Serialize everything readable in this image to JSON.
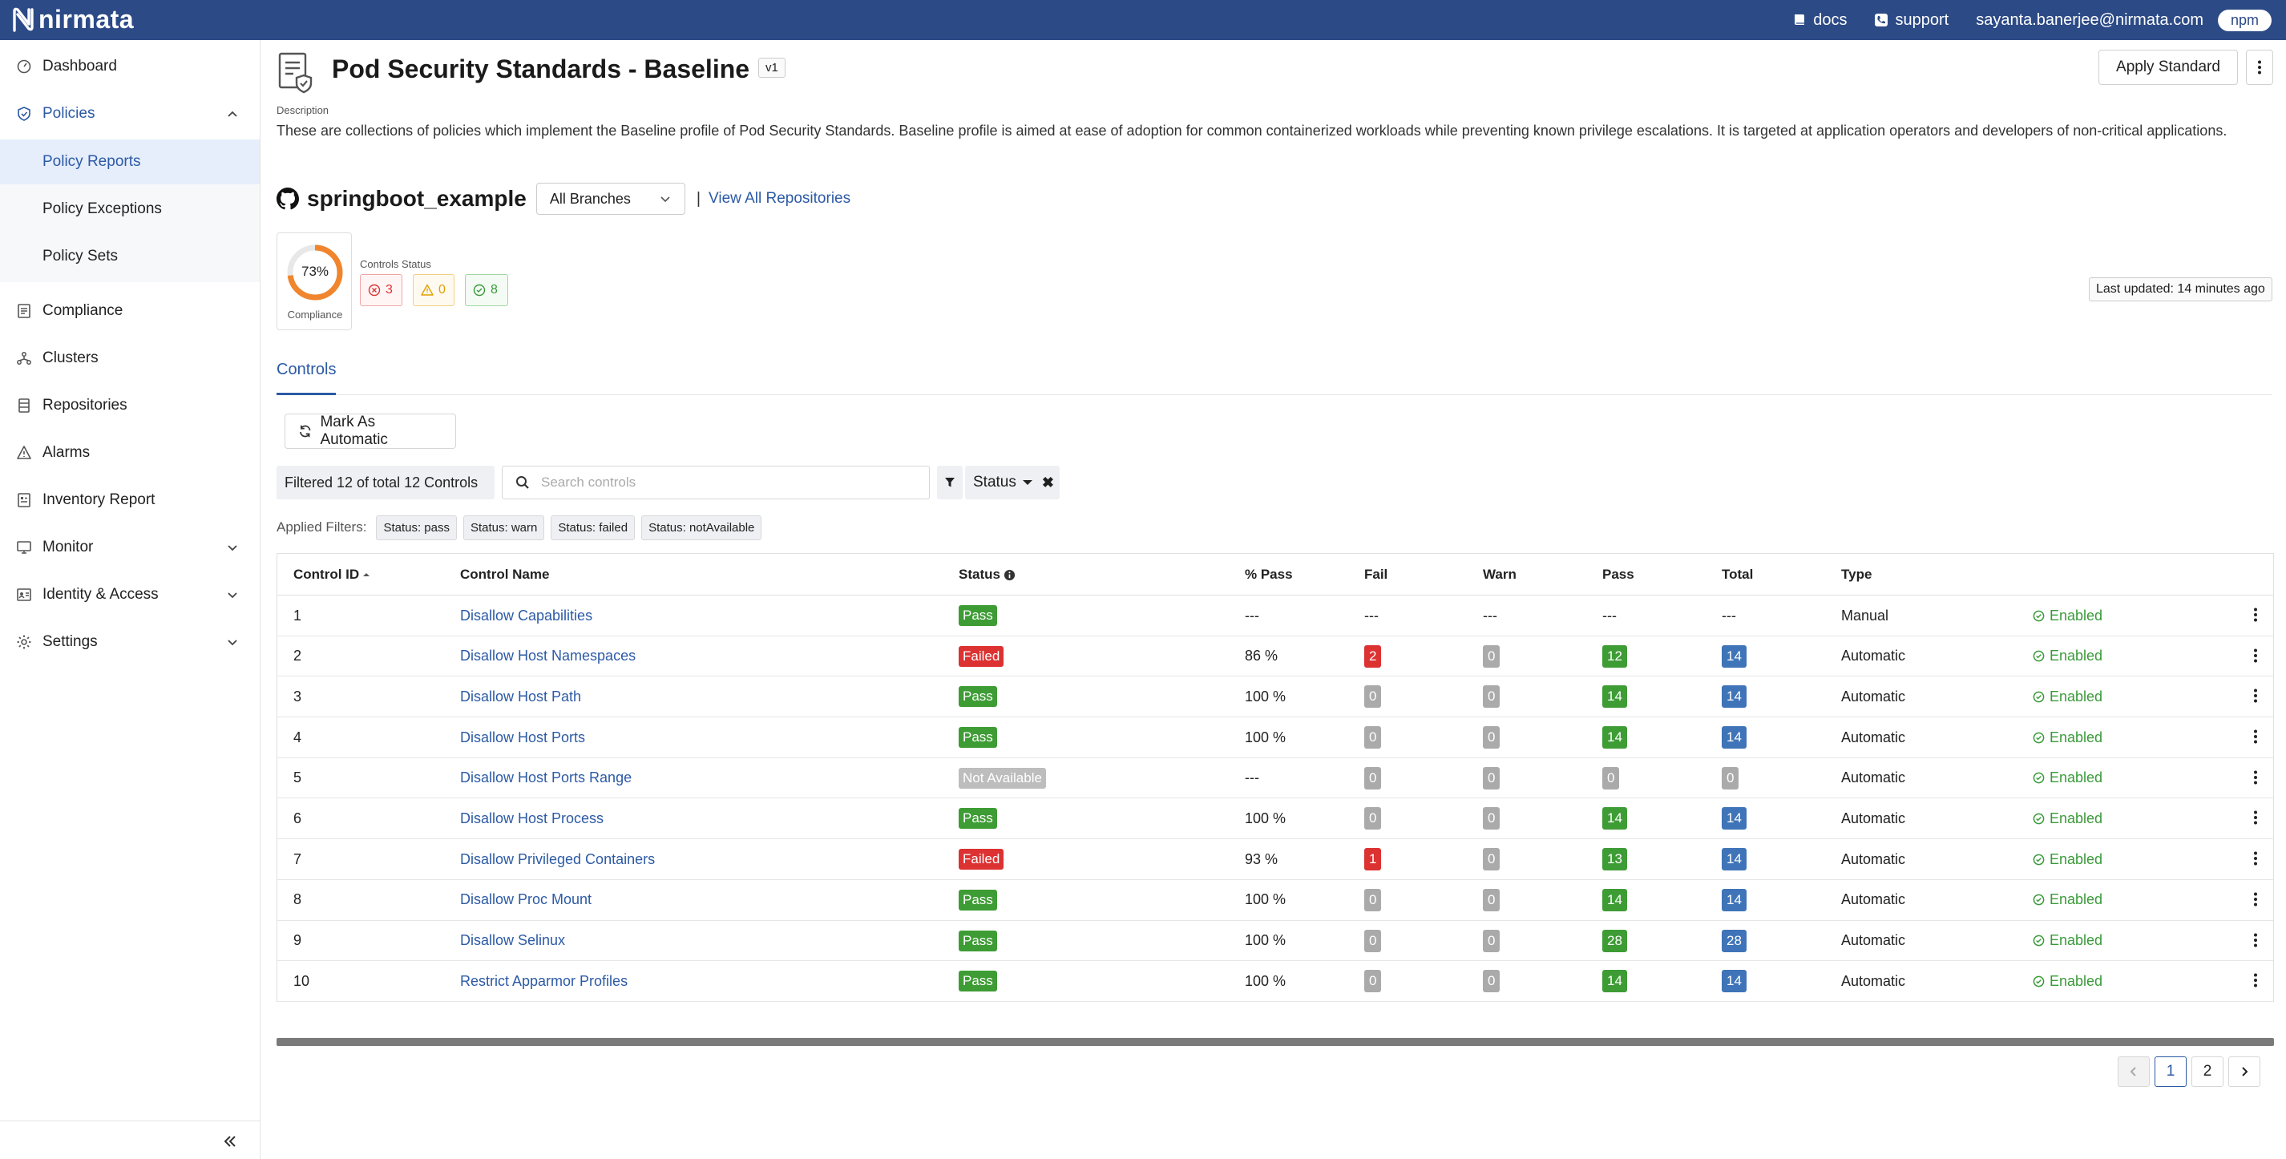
{
  "topbar": {
    "brand": "nirmata",
    "docs_label": "docs",
    "support_label": "support",
    "user_email": "sayanta.banerjee@nirmata.com",
    "tenant_pill": "npm"
  },
  "sidebar": {
    "items": [
      {
        "label": "Dashboard",
        "icon": "dashboard-icon"
      },
      {
        "label": "Policies",
        "icon": "shield-icon"
      },
      {
        "label": "Compliance",
        "icon": "compliance-icon"
      },
      {
        "label": "Clusters",
        "icon": "clusters-icon"
      },
      {
        "label": "Repositories",
        "icon": "repositories-icon"
      },
      {
        "label": "Alarms",
        "icon": "alarm-icon"
      },
      {
        "label": "Inventory Report",
        "icon": "inventory-icon"
      },
      {
        "label": "Monitor",
        "icon": "monitor-icon"
      },
      {
        "label": "Identity & Access",
        "icon": "identity-icon"
      },
      {
        "label": "Settings",
        "icon": "gear-icon"
      }
    ],
    "policies_sub": [
      {
        "label": "Policy Reports"
      },
      {
        "label": "Policy Exceptions"
      },
      {
        "label": "Policy Sets"
      }
    ]
  },
  "header": {
    "title": "Pod Security Standards - Baseline",
    "version": "v1",
    "apply_label": "Apply Standard"
  },
  "description": {
    "label": "Description",
    "text": "These are collections of policies which implement the Baseline profile of Pod Security Standards. Baseline profile is aimed at ease of adoption for common containerized workloads while preventing known privilege escalations. It is targeted at application operators and developers of non-critical applications."
  },
  "repo": {
    "name": "springboot_example",
    "branch": "All Branches",
    "separator": "|",
    "view_all": "View All Repositories"
  },
  "compliance": {
    "percent_label": "73%",
    "percent": 73,
    "label": "Compliance",
    "controls_status_label": "Controls Status",
    "failed": "3",
    "warn": "0",
    "pass": "8"
  },
  "last_updated": "Last updated: 14 minutes ago",
  "tabs": [
    {
      "label": "Controls"
    }
  ],
  "toolbar": {
    "mark_auto_label": "Mark As Automatic",
    "filter_count": "Filtered 12 of total 12 Controls",
    "search_placeholder": "Search controls",
    "status_filter_label": "Status"
  },
  "applied_filters": {
    "label": "Applied Filters:",
    "chips": [
      "Status: pass",
      "Status: warn",
      "Status: failed",
      "Status: notAvailable"
    ]
  },
  "table": {
    "headers": {
      "id": "Control ID",
      "name": "Control Name",
      "status": "Status",
      "pct": "% Pass",
      "fail": "Fail",
      "warn": "Warn",
      "pass": "Pass",
      "total": "Total",
      "type": "Type"
    },
    "rows": [
      {
        "id": "1",
        "name": "Disallow Capabilities",
        "status": "Pass",
        "pct": "---",
        "fail": "---",
        "warn": "---",
        "pass": "---",
        "total": "---",
        "type": "Manual",
        "enabled": "Enabled"
      },
      {
        "id": "2",
        "name": "Disallow Host Namespaces",
        "status": "Failed",
        "pct": "86 %",
        "fail": "2",
        "warn": "0",
        "pass": "12",
        "total": "14",
        "type": "Automatic",
        "enabled": "Enabled"
      },
      {
        "id": "3",
        "name": "Disallow Host Path",
        "status": "Pass",
        "pct": "100 %",
        "fail": "0",
        "warn": "0",
        "pass": "14",
        "total": "14",
        "type": "Automatic",
        "enabled": "Enabled"
      },
      {
        "id": "4",
        "name": "Disallow Host Ports",
        "status": "Pass",
        "pct": "100 %",
        "fail": "0",
        "warn": "0",
        "pass": "14",
        "total": "14",
        "type": "Automatic",
        "enabled": "Enabled"
      },
      {
        "id": "5",
        "name": "Disallow Host Ports Range",
        "status": "Not Available",
        "pct": "---",
        "fail": "0",
        "warn": "0",
        "pass": "0",
        "total": "0",
        "type": "Automatic",
        "enabled": "Enabled"
      },
      {
        "id": "6",
        "name": "Disallow Host Process",
        "status": "Pass",
        "pct": "100 %",
        "fail": "0",
        "warn": "0",
        "pass": "14",
        "total": "14",
        "type": "Automatic",
        "enabled": "Enabled"
      },
      {
        "id": "7",
        "name": "Disallow Privileged Containers",
        "status": "Failed",
        "pct": "93 %",
        "fail": "1",
        "warn": "0",
        "pass": "13",
        "total": "14",
        "type": "Automatic",
        "enabled": "Enabled"
      },
      {
        "id": "8",
        "name": "Disallow Proc Mount",
        "status": "Pass",
        "pct": "100 %",
        "fail": "0",
        "warn": "0",
        "pass": "14",
        "total": "14",
        "type": "Automatic",
        "enabled": "Enabled"
      },
      {
        "id": "9",
        "name": "Disallow Selinux",
        "status": "Pass",
        "pct": "100 %",
        "fail": "0",
        "warn": "0",
        "pass": "28",
        "total": "28",
        "type": "Automatic",
        "enabled": "Enabled"
      },
      {
        "id": "10",
        "name": "Restrict Apparmor Profiles",
        "status": "Pass",
        "pct": "100 %",
        "fail": "0",
        "warn": "0",
        "pass": "14",
        "total": "14",
        "type": "Automatic",
        "enabled": "Enabled"
      }
    ]
  },
  "pagination": {
    "pages": [
      "1",
      "2"
    ],
    "current": "1"
  },
  "colors": {
    "topbar": "#2c4a86",
    "link": "#2c5aa5",
    "pass": "#3e9c35",
    "failed": "#dc3232",
    "total": "#3f74b8",
    "compliance_ring": "#f0852d"
  }
}
